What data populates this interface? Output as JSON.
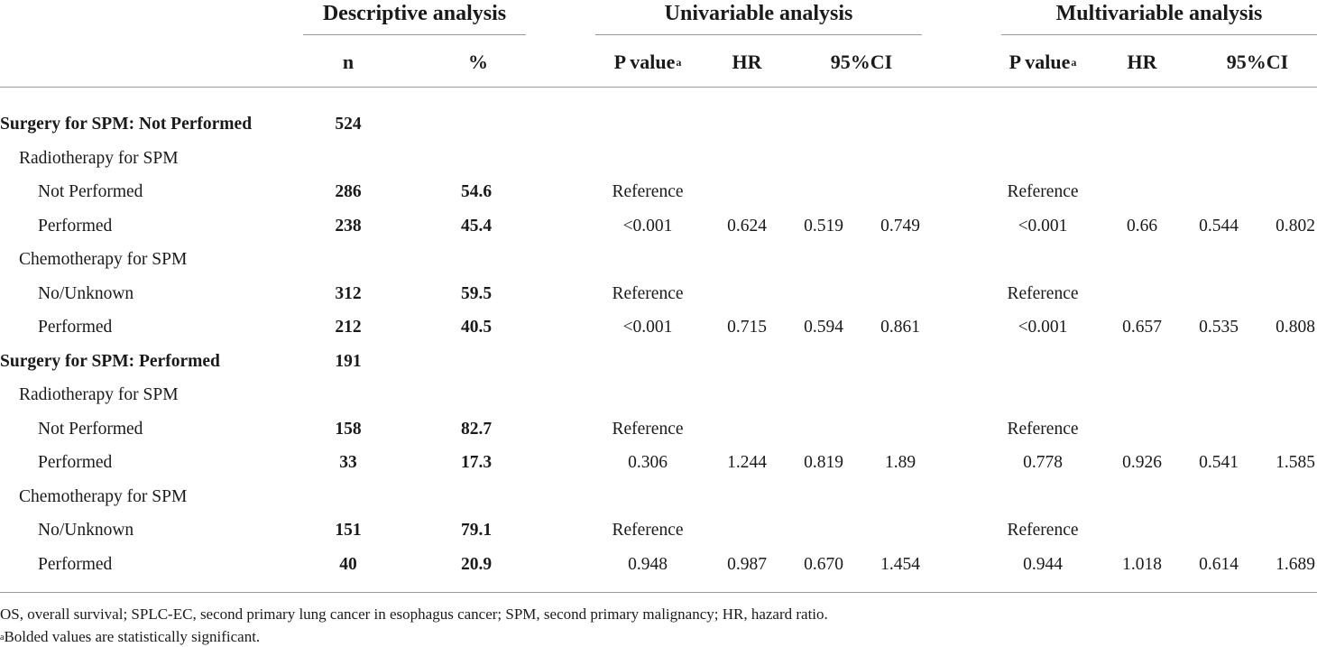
{
  "headers": {
    "groups": {
      "descriptive": "Descriptive analysis",
      "univariable": "Univariable analysis",
      "multivariable": "Multivariable analysis"
    },
    "n": "n",
    "pct": "%",
    "pvalue": "P value",
    "pvalue_sup": "a",
    "hr": "HR",
    "ci": "95%CI"
  },
  "rows": [
    {
      "label": "Surgery for SPM: Not Performed",
      "n": "524",
      "pct": "",
      "u_p": "",
      "u_hr": "",
      "u_lo": "",
      "u_hi": "",
      "m_p": "",
      "m_hr": "",
      "m_lo": "",
      "m_hi": ""
    },
    {
      "label": "Radiotherapy for SPM",
      "n": "",
      "pct": "",
      "u_p": "",
      "u_hr": "",
      "u_lo": "",
      "u_hi": "",
      "m_p": "",
      "m_hr": "",
      "m_lo": "",
      "m_hi": ""
    },
    {
      "label": "Not Performed",
      "n": "286",
      "pct": "54.6",
      "u_p": "Reference",
      "u_hr": "",
      "u_lo": "",
      "u_hi": "",
      "m_p": "Reference",
      "m_hr": "",
      "m_lo": "",
      "m_hi": ""
    },
    {
      "label": "Performed",
      "n": "238",
      "pct": "45.4",
      "u_p": "<0.001",
      "u_hr": "0.624",
      "u_lo": "0.519",
      "u_hi": "0.749",
      "m_p": "<0.001",
      "m_hr": "0.66",
      "m_lo": "0.544",
      "m_hi": "0.802"
    },
    {
      "label": "Chemotherapy for SPM",
      "n": "",
      "pct": "",
      "u_p": "",
      "u_hr": "",
      "u_lo": "",
      "u_hi": "",
      "m_p": "",
      "m_hr": "",
      "m_lo": "",
      "m_hi": ""
    },
    {
      "label": "No/Unknown",
      "n": "312",
      "pct": "59.5",
      "u_p": "Reference",
      "u_hr": "",
      "u_lo": "",
      "u_hi": "",
      "m_p": "Reference",
      "m_hr": "",
      "m_lo": "",
      "m_hi": ""
    },
    {
      "label": "Performed",
      "n": "212",
      "pct": "40.5",
      "u_p": "<0.001",
      "u_hr": "0.715",
      "u_lo": "0.594",
      "u_hi": "0.861",
      "m_p": "<0.001",
      "m_hr": "0.657",
      "m_lo": "0.535",
      "m_hi": "0.808"
    },
    {
      "label": "Surgery for SPM: Performed",
      "n": "191",
      "pct": "",
      "u_p": "",
      "u_hr": "",
      "u_lo": "",
      "u_hi": "",
      "m_p": "",
      "m_hr": "",
      "m_lo": "",
      "m_hi": ""
    },
    {
      "label": "Radiotherapy for SPM",
      "n": "",
      "pct": "",
      "u_p": "",
      "u_hr": "",
      "u_lo": "",
      "u_hi": "",
      "m_p": "",
      "m_hr": "",
      "m_lo": "",
      "m_hi": ""
    },
    {
      "label": "Not Performed",
      "n": "158",
      "pct": "82.7",
      "u_p": "Reference",
      "u_hr": "",
      "u_lo": "",
      "u_hi": "",
      "m_p": "Reference",
      "m_hr": "",
      "m_lo": "",
      "m_hi": ""
    },
    {
      "label": "Performed",
      "n": "33",
      "pct": "17.3",
      "u_p": "0.306",
      "u_hr": "1.244",
      "u_lo": "0.819",
      "u_hi": "1.89",
      "m_p": "0.778",
      "m_hr": "0.926",
      "m_lo": "0.541",
      "m_hi": "1.585"
    },
    {
      "label": "Chemotherapy for SPM",
      "n": "",
      "pct": "",
      "u_p": "",
      "u_hr": "",
      "u_lo": "",
      "u_hi": "",
      "m_p": "",
      "m_hr": "",
      "m_lo": "",
      "m_hi": ""
    },
    {
      "label": "No/Unknown",
      "n": "151",
      "pct": "79.1",
      "u_p": "Reference",
      "u_hr": "",
      "u_lo": "",
      "u_hi": "",
      "m_p": "Reference",
      "m_hr": "",
      "m_lo": "",
      "m_hi": ""
    },
    {
      "label": "Performed",
      "n": "40",
      "pct": "20.9",
      "u_p": "0.948",
      "u_hr": "0.987",
      "u_lo": "0.670",
      "u_hi": "1.454",
      "m_p": "0.944",
      "m_hr": "1.018",
      "m_lo": "0.614",
      "m_hi": "1.689"
    }
  ],
  "footnotes": {
    "abbrev": "OS, overall survival; SPLC-EC, second primary lung cancer in esophagus cancer; SPM, second primary malignancy; HR, hazard ratio.",
    "sig_sup": "a",
    "sig_text": "Bolded values are statistically significant."
  }
}
